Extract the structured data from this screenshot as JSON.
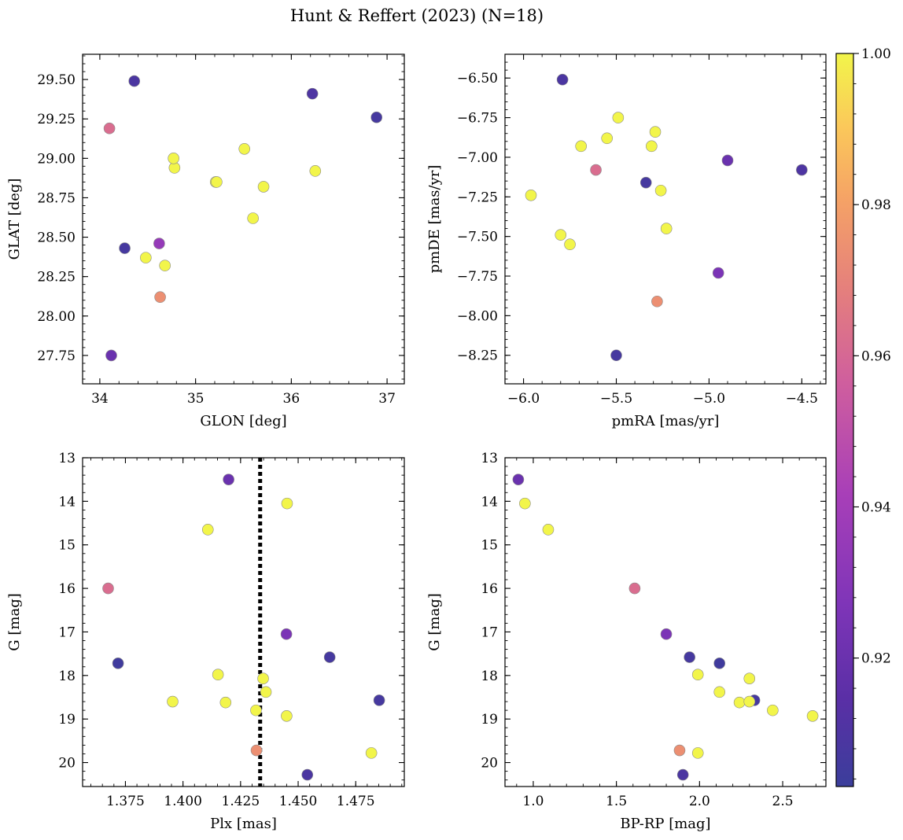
{
  "figure": {
    "title": "Hunt & Reffert (2023) (N=18)"
  },
  "colorbar": {
    "ticks": [
      0.92,
      0.94,
      0.96,
      0.98,
      1.0
    ],
    "tick_labels": [
      "0.92",
      "0.94",
      "0.96",
      "0.98",
      "1.00"
    ],
    "range": [
      0.903,
      1.0
    ],
    "colormap": "plasma"
  },
  "chart_data": [
    {
      "type": "scatter",
      "id": "glon-glat",
      "xlabel": "GLON [deg]",
      "ylabel": "GLAT [deg]",
      "xlim": [
        33.82,
        37.18
      ],
      "ylim": [
        27.57,
        29.66
      ],
      "xticks": [
        34,
        35,
        36,
        37
      ],
      "xtick_labels": [
        "34",
        "35",
        "36",
        "37"
      ],
      "yticks": [
        27.75,
        28.0,
        28.25,
        28.5,
        28.75,
        29.0,
        29.25,
        29.5
      ],
      "ytick_labels": [
        "27.75",
        "28.00",
        "28.25",
        "28.50",
        "28.75",
        "29.00",
        "29.25",
        "29.50"
      ],
      "y_inverted": false,
      "points": [
        {
          "x": 34.12,
          "y": 27.75,
          "c": 0.92
        },
        {
          "x": 34.63,
          "y": 28.12,
          "c": 0.974
        },
        {
          "x": 34.68,
          "y": 28.32,
          "c": 1.0
        },
        {
          "x": 34.48,
          "y": 28.37,
          "c": 1.0
        },
        {
          "x": 34.26,
          "y": 28.43,
          "c": 0.907
        },
        {
          "x": 34.62,
          "y": 28.46,
          "c": 0.935
        },
        {
          "x": 35.6,
          "y": 28.62,
          "c": 1.0
        },
        {
          "x": 35.71,
          "y": 28.82,
          "c": 1.0
        },
        {
          "x": 35.21,
          "y": 28.85,
          "c": 1.0
        },
        {
          "x": 35.22,
          "y": 28.85,
          "c": 1.0
        },
        {
          "x": 36.25,
          "y": 28.92,
          "c": 1.0
        },
        {
          "x": 34.78,
          "y": 28.94,
          "c": 1.0
        },
        {
          "x": 34.77,
          "y": 29.0,
          "c": 1.0
        },
        {
          "x": 35.51,
          "y": 29.06,
          "c": 1.0
        },
        {
          "x": 34.1,
          "y": 29.19,
          "c": 0.962
        },
        {
          "x": 36.89,
          "y": 29.26,
          "c": 0.907
        },
        {
          "x": 36.22,
          "y": 29.41,
          "c": 0.91
        },
        {
          "x": 34.36,
          "y": 29.49,
          "c": 0.909
        }
      ]
    },
    {
      "type": "scatter",
      "id": "pmra-pmde",
      "xlabel": "pmRA [mas/yr]",
      "ylabel": "pmDE [mas/yr]",
      "xlim": [
        -6.1,
        -4.37
      ],
      "ylim": [
        -8.43,
        -6.35
      ],
      "xticks": [
        -6.0,
        -5.5,
        -5.0,
        -4.5
      ],
      "xtick_labels": [
        "−6.0",
        "−5.5",
        "−5.0",
        "−4.5"
      ],
      "yticks": [
        -8.25,
        -8.0,
        -7.75,
        -7.5,
        -7.25,
        -7.0,
        -6.75,
        -6.5
      ],
      "ytick_labels": [
        "−8.25",
        "−8.00",
        "−7.75",
        "−7.50",
        "−7.25",
        "−7.00",
        "−6.75",
        "−6.50"
      ],
      "y_inverted": false,
      "points": [
        {
          "x": -5.5,
          "y": -8.25,
          "c": 0.907
        },
        {
          "x": -5.28,
          "y": -7.91,
          "c": 0.974
        },
        {
          "x": -4.95,
          "y": -7.73,
          "c": 0.926
        },
        {
          "x": -5.75,
          "y": -7.55,
          "c": 1.0
        },
        {
          "x": -5.8,
          "y": -7.49,
          "c": 1.0
        },
        {
          "x": -5.23,
          "y": -7.45,
          "c": 1.0
        },
        {
          "x": -5.96,
          "y": -7.24,
          "c": 1.0
        },
        {
          "x": -5.26,
          "y": -7.21,
          "c": 1.0
        },
        {
          "x": -5.34,
          "y": -7.16,
          "c": 0.907
        },
        {
          "x": -5.61,
          "y": -7.08,
          "c": 0.962
        },
        {
          "x": -4.5,
          "y": -7.08,
          "c": 0.91
        },
        {
          "x": -4.9,
          "y": -7.02,
          "c": 0.92
        },
        {
          "x": -5.69,
          "y": -6.93,
          "c": 1.0
        },
        {
          "x": -5.31,
          "y": -6.93,
          "c": 1.0
        },
        {
          "x": -5.55,
          "y": -6.88,
          "c": 1.0
        },
        {
          "x": -5.29,
          "y": -6.84,
          "c": 1.0
        },
        {
          "x": -5.49,
          "y": -6.75,
          "c": 1.0
        },
        {
          "x": -5.79,
          "y": -6.51,
          "c": 0.909
        }
      ]
    },
    {
      "type": "scatter",
      "id": "plx-g",
      "xlabel": "Plx [mas]",
      "ylabel": "G [mag]",
      "xlim": [
        1.3564,
        1.4961
      ],
      "ylim": [
        20.55,
        13.0
      ],
      "xticks": [
        1.375,
        1.4,
        1.425,
        1.45,
        1.475
      ],
      "xtick_labels": [
        "1.375",
        "1.400",
        "1.425",
        "1.450",
        "1.475"
      ],
      "yticks": [
        13,
        14,
        15,
        16,
        17,
        18,
        19,
        20
      ],
      "ytick_labels": [
        "13",
        "14",
        "15",
        "16",
        "17",
        "18",
        "19",
        "20"
      ],
      "y_inverted": true,
      "vline": {
        "x": 1.4335,
        "style": "dotted"
      },
      "points": [
        {
          "x": 1.4198,
          "y": 13.5,
          "c": 0.92
        },
        {
          "x": 1.4452,
          "y": 14.05,
          "c": 1.0
        },
        {
          "x": 1.4108,
          "y": 14.65,
          "c": 1.0
        },
        {
          "x": 1.3675,
          "y": 16.0,
          "c": 0.962
        },
        {
          "x": 1.4449,
          "y": 17.05,
          "c": 0.926
        },
        {
          "x": 1.4637,
          "y": 17.58,
          "c": 0.907
        },
        {
          "x": 1.3718,
          "y": 17.72,
          "c": 0.905
        },
        {
          "x": 1.4152,
          "y": 17.98,
          "c": 1.0
        },
        {
          "x": 1.4348,
          "y": 18.07,
          "c": 1.0
        },
        {
          "x": 1.436,
          "y": 18.38,
          "c": 1.0
        },
        {
          "x": 1.4852,
          "y": 18.57,
          "c": 0.907
        },
        {
          "x": 1.3955,
          "y": 18.6,
          "c": 1.0
        },
        {
          "x": 1.4185,
          "y": 18.62,
          "c": 1.0
        },
        {
          "x": 1.4317,
          "y": 18.8,
          "c": 1.0
        },
        {
          "x": 1.445,
          "y": 18.93,
          "c": 1.0
        },
        {
          "x": 1.4319,
          "y": 19.72,
          "c": 0.974
        },
        {
          "x": 1.4818,
          "y": 19.78,
          "c": 1.0
        },
        {
          "x": 1.454,
          "y": 20.28,
          "c": 0.909
        }
      ]
    },
    {
      "type": "scatter",
      "id": "bprp-g",
      "xlabel": "BP-RP [mag]",
      "ylabel": "G [mag]",
      "xlim": [
        0.83,
        2.76
      ],
      "ylim": [
        20.55,
        13.0
      ],
      "xticks": [
        1.0,
        1.5,
        2.0,
        2.5
      ],
      "xtick_labels": [
        "1.0",
        "1.5",
        "2.0",
        "2.5"
      ],
      "yticks": [
        13,
        14,
        15,
        16,
        17,
        18,
        19,
        20
      ],
      "ytick_labels": [
        "13",
        "14",
        "15",
        "16",
        "17",
        "18",
        "19",
        "20"
      ],
      "y_inverted": true,
      "points": [
        {
          "x": 0.91,
          "y": 13.5,
          "c": 0.92
        },
        {
          "x": 0.95,
          "y": 14.05,
          "c": 1.0
        },
        {
          "x": 1.09,
          "y": 14.65,
          "c": 1.0
        },
        {
          "x": 1.61,
          "y": 16.0,
          "c": 0.962
        },
        {
          "x": 1.8,
          "y": 17.05,
          "c": 0.926
        },
        {
          "x": 1.94,
          "y": 17.58,
          "c": 0.907
        },
        {
          "x": 2.12,
          "y": 17.72,
          "c": 0.905
        },
        {
          "x": 1.99,
          "y": 17.98,
          "c": 1.0
        },
        {
          "x": 2.3,
          "y": 18.07,
          "c": 1.0
        },
        {
          "x": 2.12,
          "y": 18.38,
          "c": 1.0
        },
        {
          "x": 2.33,
          "y": 18.57,
          "c": 0.907
        },
        {
          "x": 2.24,
          "y": 18.62,
          "c": 1.0
        },
        {
          "x": 2.3,
          "y": 18.6,
          "c": 1.0
        },
        {
          "x": 2.44,
          "y": 18.8,
          "c": 1.0
        },
        {
          "x": 2.68,
          "y": 18.93,
          "c": 1.0
        },
        {
          "x": 1.88,
          "y": 19.72,
          "c": 0.974
        },
        {
          "x": 1.99,
          "y": 19.78,
          "c": 1.0
        },
        {
          "x": 1.9,
          "y": 20.28,
          "c": 0.909
        }
      ]
    }
  ]
}
